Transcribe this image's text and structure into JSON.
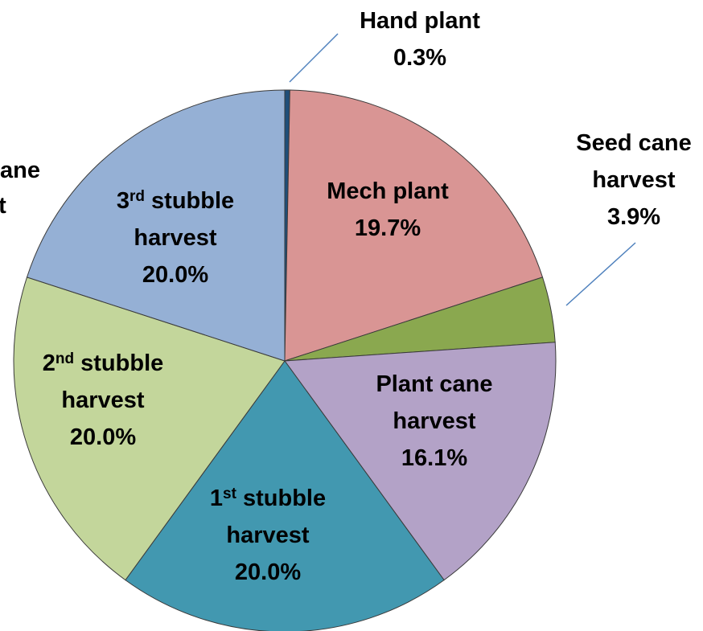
{
  "chart_data": {
    "type": "pie",
    "categories": [
      "Hand plant",
      "Mech plant",
      "Seed cane harvest",
      "Plant cane harvest",
      "1st stubble harvest",
      "2nd stubble harvest",
      "3rd stubble harvest"
    ],
    "values": [
      0.3,
      19.7,
      3.9,
      16.1,
      20.0,
      20.0,
      20.0
    ],
    "value_labels": [
      "0.3%",
      "19.7%",
      "3.9%",
      "16.1%",
      "20.0%",
      "20.0%",
      "20.0%"
    ],
    "colors": [
      "#1f4e79",
      "#d99594",
      "#8aa84f",
      "#b3a2c7",
      "#4298b0",
      "#c3d69b",
      "#95b0d5"
    ],
    "annotations": [
      "ane",
      "st"
    ]
  }
}
